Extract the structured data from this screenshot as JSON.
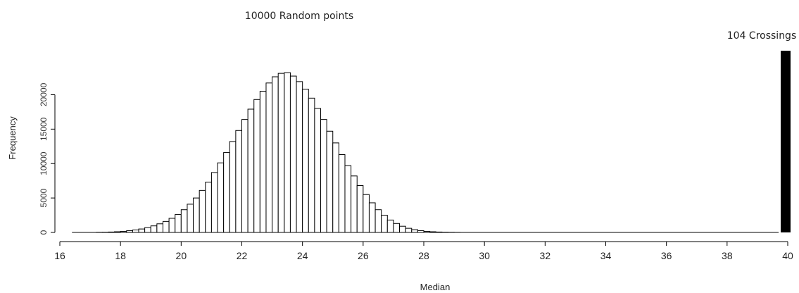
{
  "chart_data": {
    "type": "bar",
    "title": "10000 Random points",
    "xlabel": "Median",
    "ylabel": "Frequency",
    "annotation": "104 Crossings",
    "observed_value": 40,
    "x_ticks": [
      "16",
      "18",
      "20",
      "22",
      "24",
      "26",
      "28",
      "30",
      "32",
      "34",
      "36",
      "38",
      "40"
    ],
    "y_ticks": [
      "0",
      "5000",
      "10000",
      "15000",
      "20000"
    ],
    "xlim": [
      16,
      40
    ],
    "ylim": [
      0,
      27000
    ],
    "bin_width": 0.2,
    "bins_start": [
      17.2,
      17.4,
      17.6,
      17.8,
      18.0,
      18.2,
      18.4,
      18.6,
      18.8,
      19.0,
      19.2,
      19.4,
      19.6,
      19.8,
      20.0,
      20.2,
      20.4,
      20.6,
      20.8,
      21.0,
      21.2,
      21.4,
      21.6,
      21.8,
      22.0,
      22.2,
      22.4,
      22.6,
      22.8,
      23.0,
      23.2,
      23.4,
      23.6,
      23.8,
      24.0,
      24.2,
      24.4,
      24.6,
      24.8,
      25.0,
      25.2,
      25.4,
      25.6,
      25.8,
      26.0,
      26.2,
      26.4,
      26.6,
      26.8,
      27.0,
      27.2,
      27.4,
      27.6,
      27.8,
      28.0,
      28.2,
      28.4,
      28.6,
      28.8,
      29.0
    ],
    "values": [
      20,
      30,
      60,
      100,
      160,
      250,
      360,
      500,
      700,
      950,
      1250,
      1600,
      2050,
      2600,
      3300,
      4100,
      5000,
      6100,
      7300,
      8700,
      10100,
      11600,
      13200,
      14800,
      16400,
      17900,
      19300,
      20500,
      21700,
      22600,
      23100,
      23200,
      22700,
      21900,
      20800,
      19500,
      18000,
      16400,
      14700,
      13000,
      11300,
      9700,
      8200,
      6800,
      5500,
      4300,
      3300,
      2500,
      1800,
      1300,
      900,
      600,
      400,
      260,
      160,
      100,
      60,
      35,
      20,
      10
    ]
  }
}
